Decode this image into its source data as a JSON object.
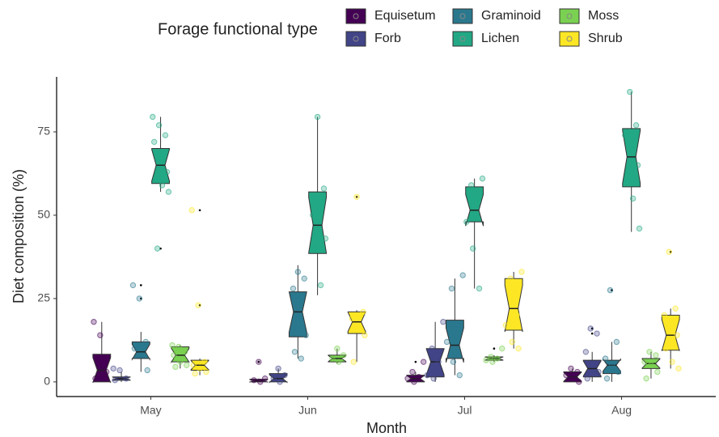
{
  "chart_data": {
    "type": "boxplot",
    "legend_title": "Forage functional type",
    "x_label": "Month",
    "y_label": "Diet composition (%)",
    "categories": [
      "May",
      "Jun",
      "Jul",
      "Aug"
    ],
    "ylim": [
      -4.4,
      91.5
    ],
    "yticks": [
      0,
      25,
      50,
      75
    ],
    "legend_position": "top",
    "series": [
      {
        "name": "Equisetum",
        "color": "#440154",
        "boxes": [
          {
            "low": 0,
            "q1": 0,
            "median": 3.5,
            "q3": 8.3,
            "high": 18,
            "outliers": [],
            "points": [
              18,
              14,
              3,
              1
            ]
          },
          {
            "low": 0,
            "q1": 0,
            "median": 0.3,
            "q3": 0.8,
            "high": 1,
            "outliers": [
              6
            ],
            "points": [
              6,
              1,
              0.5,
              0
            ]
          },
          {
            "low": 0,
            "q1": 0,
            "median": 1,
            "q3": 2,
            "high": 3,
            "outliers": [
              6
            ],
            "points": [
              6,
              3,
              1.5,
              1,
              0
            ]
          },
          {
            "low": 0,
            "q1": 0,
            "median": 1.5,
            "q3": 3,
            "high": 4,
            "outliers": [],
            "points": [
              4,
              3,
              2,
              1,
              0
            ]
          }
        ]
      },
      {
        "name": "Forb",
        "color": "#414487",
        "boxes": [
          {
            "low": 0,
            "q1": 0.5,
            "median": 1,
            "q3": 1.5,
            "high": 3,
            "outliers": [],
            "points": [
              4,
              3.5,
              1,
              0.5
            ]
          },
          {
            "low": 0,
            "q1": 0,
            "median": 1,
            "q3": 2.5,
            "high": 4,
            "outliers": [],
            "points": [
              4,
              2,
              1,
              0
            ]
          },
          {
            "low": 0,
            "q1": 1.5,
            "median": 6,
            "q3": 10,
            "high": 18,
            "outliers": [],
            "points": [
              18,
              10,
              6,
              2,
              1
            ]
          },
          {
            "low": 0,
            "q1": 1.5,
            "median": 4,
            "q3": 6.5,
            "high": 9,
            "outliers": [
              16,
              14.5
            ],
            "points": [
              16,
              14.5,
              9,
              5,
              3,
              1
            ]
          }
        ]
      },
      {
        "name": "Graminoid",
        "color": "#2a788e",
        "boxes": [
          {
            "low": 3,
            "q1": 7,
            "median": 9,
            "q3": 12,
            "high": 15,
            "outliers": [
              29,
              25
            ],
            "points": [
              29,
              25,
              12,
              10,
              8,
              3.5
            ]
          },
          {
            "low": 7,
            "q1": 13.5,
            "median": 21,
            "q3": 27,
            "high": 35,
            "outliers": [],
            "points": [
              33,
              31,
              28,
              22,
              14,
              9,
              7
            ]
          },
          {
            "low": 2,
            "q1": 7,
            "median": 11,
            "q3": 18.5,
            "high": 31,
            "outliers": [],
            "points": [
              32,
              28,
              17,
              12,
              6,
              2
            ]
          },
          {
            "low": 0,
            "q1": 2.5,
            "median": 5,
            "q3": 6.5,
            "high": 12,
            "outliers": [
              27.5
            ],
            "points": [
              27.5,
              12,
              7,
              5,
              3,
              1
            ]
          }
        ]
      },
      {
        "name": "Lichen",
        "color": "#22a884",
        "boxes": [
          {
            "low": 57,
            "q1": 59.5,
            "median": 65,
            "q3": 70,
            "high": 79.5,
            "outliers": [
              40
            ],
            "points": [
              79.5,
              77,
              74,
              72,
              67,
              63,
              61,
              59,
              57,
              40
            ]
          },
          {
            "low": 26,
            "q1": 38.5,
            "median": 47,
            "q3": 57,
            "high": 79.5,
            "outliers": [],
            "points": [
              79.5,
              58,
              50,
              45,
              43,
              40,
              29
            ]
          },
          {
            "low": 28,
            "q1": 48,
            "median": 51.5,
            "q3": 58.5,
            "high": 61,
            "outliers": [],
            "points": [
              61,
              59,
              55,
              48,
              40,
              28
            ]
          },
          {
            "low": 45,
            "q1": 58.5,
            "median": 67.5,
            "q3": 76,
            "high": 87,
            "outliers": [],
            "points": [
              87,
              77,
              74,
              70,
              65,
              60,
              55,
              46
            ]
          }
        ]
      },
      {
        "name": "Moss",
        "color": "#7ad151",
        "boxes": [
          {
            "low": 4,
            "q1": 6,
            "median": 8,
            "q3": 10.5,
            "high": 11,
            "outliers": [],
            "points": [
              11,
              10.5,
              9,
              8,
              6,
              5,
              4.5
            ]
          },
          {
            "low": 5.5,
            "q1": 6,
            "median": 7,
            "q3": 8,
            "high": 10,
            "outliers": [],
            "points": [
              10,
              8,
              7,
              6
            ]
          },
          {
            "low": 6,
            "q1": 6.5,
            "median": 7,
            "q3": 7.5,
            "high": 8,
            "outliers": [
              10
            ],
            "points": [
              10,
              7.5,
              7,
              6.5,
              6
            ]
          },
          {
            "low": 1,
            "q1": 4,
            "median": 5.5,
            "q3": 7,
            "high": 9,
            "outliers": [],
            "points": [
              9,
              8,
              6,
              5,
              3,
              1
            ]
          }
        ]
      },
      {
        "name": "Shrub",
        "color": "#fde725",
        "boxes": [
          {
            "low": 2,
            "q1": 3.5,
            "median": 5,
            "q3": 6.5,
            "high": 7,
            "outliers": [
              51.5,
              23
            ],
            "points": [
              51.5,
              23,
              6,
              5,
              4,
              3,
              2.5
            ]
          },
          {
            "low": 6,
            "q1": 14.5,
            "median": 18,
            "q3": 21,
            "high": 21.5,
            "outliers": [
              55.5
            ],
            "points": [
              55.5,
              21,
              19,
              16,
              14,
              6
            ]
          },
          {
            "low": 10,
            "q1": 15.5,
            "median": 22,
            "q3": 31,
            "high": 33,
            "outliers": [],
            "points": [
              33,
              31,
              20,
              17,
              12,
              10
            ]
          },
          {
            "low": 4,
            "q1": 9.5,
            "median": 14,
            "q3": 20,
            "high": 22,
            "outliers": [
              39
            ],
            "points": [
              39,
              22,
              20,
              17,
              14,
              10,
              6,
              4
            ]
          }
        ]
      }
    ]
  }
}
